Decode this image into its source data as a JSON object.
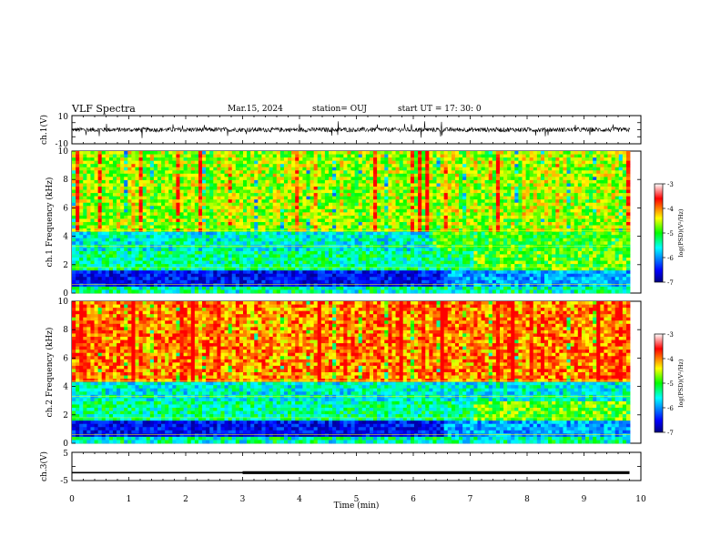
{
  "header": {
    "title": "VLF Spectra",
    "date": "Mar.15, 2024",
    "station": "station= OUJ",
    "start": "start  UT  =   17: 30: 0"
  },
  "chart_data": [
    {
      "type": "line",
      "ylabel": "ch.1(V)",
      "ylim": [
        -10,
        10
      ],
      "ytick_labels": [
        "10",
        "-10"
      ],
      "xlim": [
        0,
        10
      ],
      "baseline": 0,
      "note_values": "waveform oscillating near 0 V with spikes up to about ±3 V"
    },
    {
      "type": "heatmap",
      "ylabel": "ch.1  Frequency (kHz)",
      "ylim": [
        0,
        10
      ],
      "ytick_labels": [
        "0",
        "2",
        "4",
        "6",
        "8",
        "10"
      ],
      "xlim": [
        0,
        10
      ],
      "colorbar": {
        "label": "log(PSD)(V²/Hz)",
        "range": [
          -7,
          -3
        ],
        "tick_labels": [
          "-3",
          "-4",
          "-5",
          "-6",
          "-7"
        ]
      }
    },
    {
      "type": "heatmap",
      "ylabel": "ch.2  Frequency (kHz)",
      "ylim": [
        0,
        10
      ],
      "ytick_labels": [
        "0",
        "2",
        "4",
        "6",
        "8",
        "10"
      ],
      "xlim": [
        0,
        10
      ],
      "colorbar": {
        "label": "log(PSD)(V²/Hz)",
        "range": [
          -7,
          -3
        ],
        "tick_labels": [
          "-3",
          "-4",
          "-5",
          "-6",
          "-7"
        ]
      }
    },
    {
      "type": "line",
      "ylabel": "ch.3(V)",
      "ylim": [
        -5,
        5
      ],
      "ytick_labels": [
        "5",
        "-5"
      ],
      "xlim": [
        0,
        10
      ],
      "xlabel": "Time  (min)",
      "xtick_labels": [
        "0",
        "1",
        "2",
        "3",
        "4",
        "5",
        "6",
        "7",
        "8",
        "9",
        "10"
      ],
      "x": [
        0,
        3,
        3,
        9.8
      ],
      "y": [
        -2.2,
        -2.2,
        -2.2,
        -2.2
      ],
      "thin_until": 3
    }
  ],
  "colors": {
    "frame": "#000000",
    "trace": "#000000"
  }
}
